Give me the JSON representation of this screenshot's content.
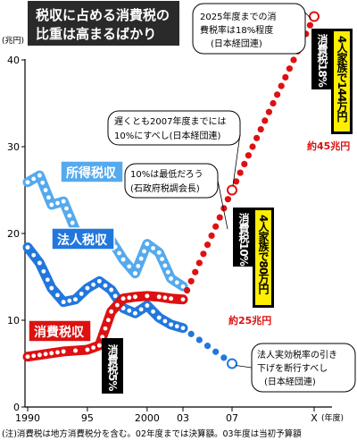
{
  "header": {
    "title_line1": "税収に占める消費税の",
    "title_line2": "比重は高まるばかり"
  },
  "footnote": "(注)消費税は地方消費税分を含む。02年度までは決算額。03年度は当初予算額",
  "chart_data": {
    "type": "line",
    "ylabel": "(兆円)",
    "xlabel": "(年度)",
    "ylim": [
      0,
      40
    ],
    "yticks": [
      0,
      10,
      20,
      30,
      40
    ],
    "xtick_labels": [
      {
        "x": 1990,
        "label": "1990"
      },
      {
        "x": 1995,
        "label": "95"
      },
      {
        "x": 2000,
        "label": "2000"
      },
      {
        "x": 2003,
        "label": "03"
      },
      {
        "x": 2007,
        "label": "07"
      },
      {
        "x": 2016,
        "label": "X"
      }
    ],
    "series": [
      {
        "name": "所得税収",
        "color": "#55aaee",
        "x": [
          1990,
          1991,
          1992,
          1993,
          1994,
          1995,
          1996,
          1997,
          1998,
          1999,
          2000,
          2001,
          2002,
          2003
        ],
        "values": [
          25.9,
          26.7,
          23.3,
          23.7,
          20.4,
          19.5,
          19.0,
          19.2,
          17.0,
          15.4,
          18.8,
          17.8,
          14.8,
          13.9
        ]
      },
      {
        "name": "法人税収",
        "color": "#2277dd",
        "x": [
          1990,
          1991,
          1992,
          1993,
          1994,
          1995,
          1996,
          1997,
          1998,
          1999,
          2000,
          2001,
          2002,
          2003
        ],
        "values": [
          18.4,
          16.6,
          13.7,
          12.1,
          12.4,
          13.7,
          14.5,
          13.5,
          11.4,
          10.8,
          11.7,
          10.3,
          9.5,
          9.1
        ],
        "projection": {
          "x": [
            2003,
            2007
          ],
          "values": [
            9.1,
            5.0
          ]
        }
      },
      {
        "name": "消費税収",
        "color": "#dd1111",
        "x": [
          1990,
          1991,
          1992,
          1993,
          1994,
          1995,
          1996,
          1997,
          1998,
          1999,
          2000,
          2001,
          2002,
          2003
        ],
        "values": [
          5.8,
          6.0,
          6.2,
          6.4,
          6.5,
          6.6,
          7.1,
          11.0,
          12.5,
          12.7,
          12.8,
          12.7,
          12.5,
          12.4
        ],
        "projection": {
          "x": [
            2003,
            2007,
            2016
          ],
          "values": [
            12.4,
            25.0,
            45.0
          ]
        }
      }
    ],
    "series_labels": {
      "income": "所得税収",
      "corporate": "法人税収",
      "consumption": "消費税収"
    },
    "annotations": {
      "keidanren_2025": [
        "2025年度までの消",
        "費税率は18%程度",
        "(日本経団連)"
      ],
      "keidanren_2007": [
        "遅くとも2007年度までには",
        "10%にすべし(日本経団連)"
      ],
      "ishi": [
        "10%は最低だろう",
        "(石政府税調会長)"
      ],
      "corp_cut": [
        "法人実効税率の引き",
        "下げを断行すべし",
        "(日本経団連)"
      ]
    },
    "callouts": {
      "rate5": "消費税5%",
      "rate10": "消費税10%",
      "family10": "4人家族で80万円",
      "total25": "約25兆円",
      "rate18": "消費税18%",
      "family18": "4人家族で144万円",
      "total45": "約45兆円"
    }
  }
}
